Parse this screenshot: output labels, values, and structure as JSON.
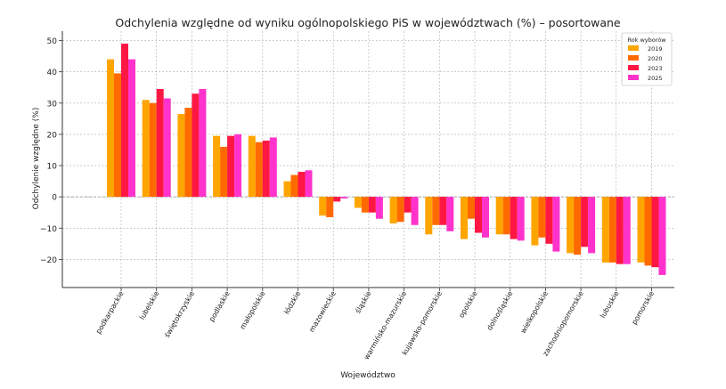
{
  "chart_data": {
    "type": "bar",
    "title": "Odchylenia względne od wyniku ogólnopolskiego PiS w województwach (%) – posortowane",
    "xlabel": "Województwo",
    "ylabel": "Odchylenie względne (%)",
    "ylim": [
      -29,
      53
    ],
    "yticks": [
      -20,
      -10,
      0,
      10,
      20,
      30,
      40,
      50
    ],
    "grid": true,
    "legend": {
      "title": "Rok wyborów",
      "placement": "top-right"
    },
    "categories": [
      "podkarpackie",
      "lubelskie",
      "świętokrzyskie",
      "podlaskie",
      "małopolskie",
      "łódzkie",
      "mazowieckie",
      "śląskie",
      "warmińsko-mazurskie",
      "kujawsko-pomorskie",
      "opolskie",
      "dolnośląskie",
      "wielkopolskie",
      "zachodniopomorskie",
      "lubuskie",
      "pomorskie"
    ],
    "series": [
      {
        "name": "2019",
        "color": "#FFA500",
        "values": [
          44,
          31,
          26.5,
          19.5,
          19.5,
          5,
          -6,
          -3.5,
          -8.5,
          -12,
          -13.5,
          -12,
          -15.5,
          -18,
          -21,
          -21
        ]
      },
      {
        "name": "2020",
        "color": "#FF6A00",
        "values": [
          39.5,
          30,
          28.5,
          16,
          17.5,
          7,
          -6.5,
          -5,
          -8,
          -9,
          -7,
          -12,
          -13,
          -18.5,
          -21,
          -22
        ]
      },
      {
        "name": "2023",
        "color": "#FF1744",
        "values": [
          49,
          34.5,
          33,
          19.5,
          18,
          8,
          -1.5,
          -5,
          -5,
          -9,
          -11.5,
          -13.5,
          -15,
          -16,
          -21.5,
          -22.5
        ]
      },
      {
        "name": "2025",
        "color": "#FF33CC",
        "values": [
          44,
          31.5,
          34.5,
          20,
          19,
          8.5,
          -0.5,
          -7,
          -9,
          -11,
          -13,
          -14,
          -17.5,
          -18,
          -21.5,
          -25
        ]
      }
    ]
  }
}
